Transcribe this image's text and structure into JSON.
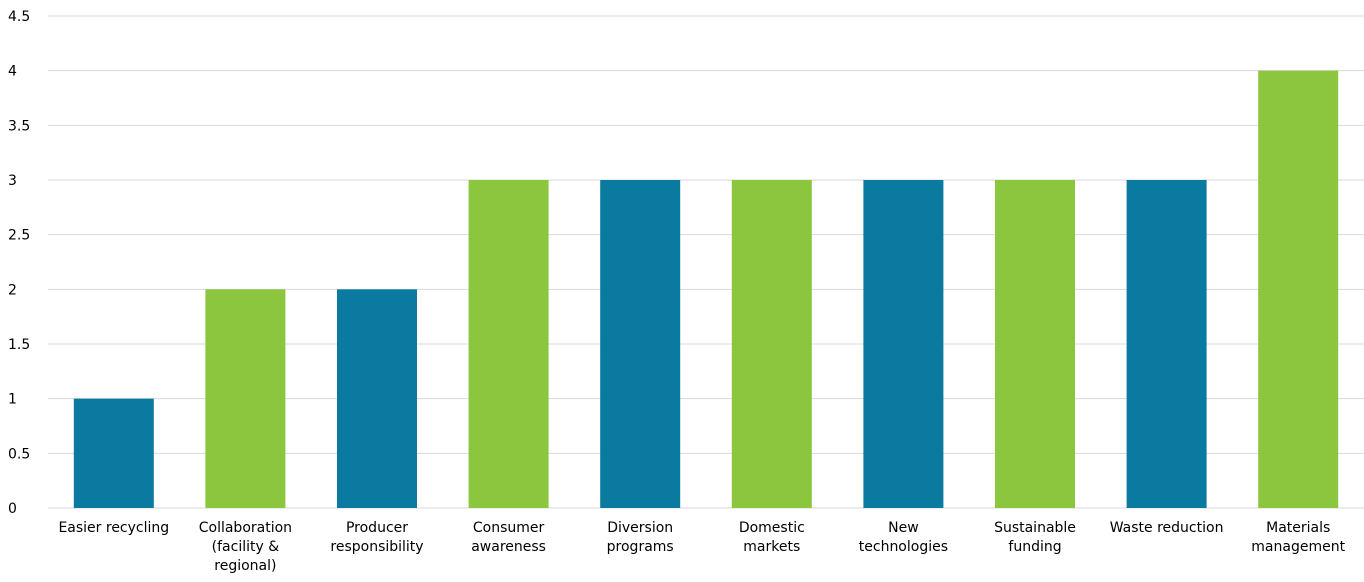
{
  "chart_data": {
    "type": "bar",
    "title": "",
    "xlabel": "",
    "ylabel": "",
    "ylim": [
      0,
      4.5
    ],
    "yticks": [
      "0",
      "0.5",
      "1",
      "1.5",
      "2",
      "2.5",
      "3",
      "3.5",
      "4",
      "4.5"
    ],
    "grid": true,
    "legend": "none",
    "categories": [
      [
        "Easier recycling"
      ],
      [
        "Collaboration",
        "(facility &",
        "regional)"
      ],
      [
        "Producer",
        "responsibility"
      ],
      [
        "Consumer",
        "awareness"
      ],
      [
        "Diversion",
        "programs"
      ],
      [
        "Domestic",
        "markets"
      ],
      [
        "New",
        "technologies"
      ],
      [
        "Sustainable",
        "funding"
      ],
      [
        "Waste reduction"
      ],
      [
        "Materials",
        "management"
      ]
    ],
    "values": [
      1,
      2,
      2,
      3,
      3,
      3,
      3,
      3,
      3,
      4
    ],
    "bar_colors": [
      "#0a7aa0",
      "#8cc63f",
      "#0a7aa0",
      "#8cc63f",
      "#0a7aa0",
      "#8cc63f",
      "#0a7aa0",
      "#8cc63f",
      "#0a7aa0",
      "#8cc63f"
    ],
    "gridline_color": "#d9d9d9"
  }
}
